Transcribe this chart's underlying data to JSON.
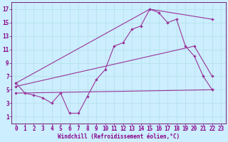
{
  "xlabel": "Windchill (Refroidissement éolien,°C)",
  "bg_color": "#cceeff",
  "line_color": "#993399",
  "xlim": [
    -0.5,
    23.5
  ],
  "ylim": [
    0,
    18
  ],
  "xticks": [
    0,
    1,
    2,
    3,
    4,
    5,
    6,
    7,
    8,
    9,
    10,
    11,
    12,
    13,
    14,
    15,
    16,
    17,
    18,
    19,
    20,
    21,
    22,
    23
  ],
  "yticks": [
    1,
    3,
    5,
    7,
    9,
    11,
    13,
    15,
    17
  ],
  "line1_x": [
    0,
    1,
    2,
    3,
    4,
    5,
    6,
    7,
    8,
    9,
    10,
    11,
    12,
    13,
    14,
    15,
    16,
    17,
    18,
    19,
    20,
    21,
    22
  ],
  "line1_y": [
    6,
    4.5,
    4.2,
    3.8,
    3,
    4.5,
    1.5,
    1.5,
    4,
    6.5,
    8,
    11.5,
    12,
    14,
    14.5,
    17,
    16.5,
    15,
    15.5,
    11.5,
    10,
    7,
    5
  ],
  "line2_x": [
    0,
    15,
    22
  ],
  "line2_y": [
    6,
    17,
    15.5
  ],
  "line3_x": [
    0,
    22
  ],
  "line3_y": [
    4.5,
    5
  ],
  "line4_x": [
    0,
    20,
    22
  ],
  "line4_y": [
    5.5,
    11.5,
    7
  ],
  "grid_color": "#aadddd",
  "font_color": "#880088",
  "axis_color": "#660066",
  "font_size": 5.5,
  "xlabel_size": 5.5,
  "marker": "D",
  "markersize": 2.2,
  "linewidth": 0.8
}
